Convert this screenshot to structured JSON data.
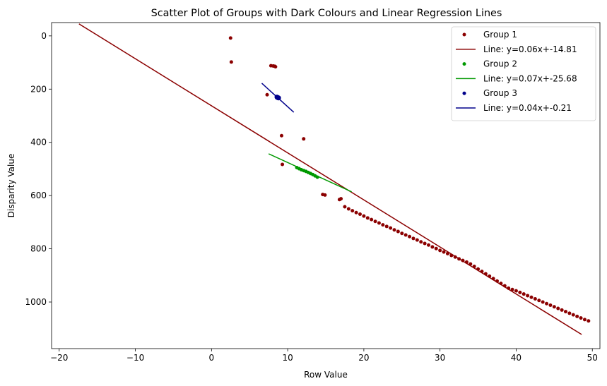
{
  "chart_data": {
    "type": "scatter",
    "title": "Scatter Plot of Groups with Dark Colours and Linear Regression Lines",
    "xlabel": "Row Value",
    "ylabel": "Disparity Value",
    "xlim": [
      -21,
      51
    ],
    "ylim": [
      1175,
      -50
    ],
    "y_inverted": true,
    "x_ticks": [
      -20,
      -10,
      0,
      10,
      20,
      30,
      40,
      50
    ],
    "y_ticks": [
      0,
      200,
      400,
      600,
      800,
      1000
    ],
    "grid": false,
    "legend_position": "top-right",
    "series": [
      {
        "name": "Group 1",
        "color": "#8b0000",
        "points": [
          [
            2.5,
            8
          ],
          [
            2.6,
            98
          ],
          [
            7.8,
            112
          ],
          [
            8.1,
            113
          ],
          [
            8.3,
            114
          ],
          [
            8.4,
            116
          ],
          [
            7.3,
            221
          ],
          [
            9.2,
            375
          ],
          [
            9.3,
            483
          ],
          [
            12.1,
            387
          ],
          [
            14.6,
            596
          ],
          [
            14.9,
            598
          ],
          [
            16.8,
            615
          ],
          [
            17.0,
            612
          ],
          [
            17.5,
            642
          ],
          [
            18.0,
            650
          ],
          [
            18.5,
            657
          ],
          [
            19.0,
            664
          ],
          [
            19.5,
            670
          ],
          [
            20.0,
            677
          ],
          [
            20.5,
            684
          ],
          [
            21.0,
            690
          ],
          [
            21.5,
            697
          ],
          [
            22.0,
            703
          ],
          [
            22.5,
            710
          ],
          [
            23.0,
            716
          ],
          [
            23.5,
            722
          ],
          [
            24.0,
            729
          ],
          [
            24.5,
            735
          ],
          [
            25.0,
            742
          ],
          [
            25.5,
            748
          ],
          [
            26.0,
            754
          ],
          [
            26.5,
            761
          ],
          [
            27.0,
            767
          ],
          [
            27.5,
            774
          ],
          [
            28.0,
            780
          ],
          [
            28.5,
            786
          ],
          [
            29.0,
            793
          ],
          [
            29.5,
            799
          ],
          [
            30.0,
            806
          ],
          [
            30.5,
            812
          ],
          [
            31.0,
            818
          ],
          [
            31.5,
            825
          ],
          [
            32.0,
            831
          ],
          [
            32.5,
            838
          ],
          [
            33.0,
            844
          ],
          [
            33.5,
            850
          ],
          [
            34.0,
            857
          ],
          [
            34.5,
            866
          ],
          [
            35.0,
            876
          ],
          [
            35.5,
            885
          ],
          [
            36.0,
            894
          ],
          [
            36.5,
            903
          ],
          [
            37.0,
            912
          ],
          [
            37.5,
            921
          ],
          [
            38.0,
            930
          ],
          [
            38.5,
            939
          ],
          [
            39.0,
            948
          ],
          [
            39.5,
            953
          ],
          [
            40.0,
            958
          ],
          [
            40.5,
            964
          ],
          [
            41.0,
            970
          ],
          [
            41.5,
            976
          ],
          [
            42.0,
            982
          ],
          [
            42.5,
            988
          ],
          [
            43.0,
            994
          ],
          [
            43.5,
            1000
          ],
          [
            44.0,
            1006
          ],
          [
            44.5,
            1012
          ],
          [
            45.0,
            1018
          ],
          [
            45.5,
            1024
          ],
          [
            46.0,
            1030
          ],
          [
            46.5,
            1036
          ],
          [
            47.0,
            1042
          ],
          [
            47.5,
            1048
          ],
          [
            48.0,
            1054
          ],
          [
            48.5,
            1060
          ],
          [
            49.0,
            1066
          ],
          [
            49.5,
            1071
          ]
        ],
        "fit_line": {
          "label": "Line: y=0.06x+-14.81",
          "x": [
            -17.4,
            48.6
          ],
          "y": [
            -45,
            1122
          ]
        }
      },
      {
        "name": "Group 2",
        "color": "#009900",
        "points": [
          [
            11.2,
            495
          ],
          [
            11.5,
            499
          ],
          [
            11.8,
            503
          ],
          [
            12.1,
            506
          ],
          [
            12.4,
            509
          ],
          [
            12.7,
            513
          ],
          [
            13.0,
            517
          ],
          [
            13.3,
            521
          ],
          [
            13.6,
            526
          ],
          [
            13.9,
            531
          ]
        ],
        "fit_line": {
          "label": "Line: y=0.07x+-25.68",
          "x": [
            7.5,
            18.4
          ],
          "y": [
            443,
            586
          ]
        }
      },
      {
        "name": "Group 3",
        "color": "#00008b",
        "points": [
          [
            8.6,
            230
          ],
          [
            8.7,
            232
          ],
          [
            8.8,
            233
          ]
        ],
        "fit_line": {
          "label": "Line: y=0.04x+-0.21",
          "x": [
            6.6,
            10.8
          ],
          "y": [
            178,
            287
          ]
        }
      }
    ]
  }
}
